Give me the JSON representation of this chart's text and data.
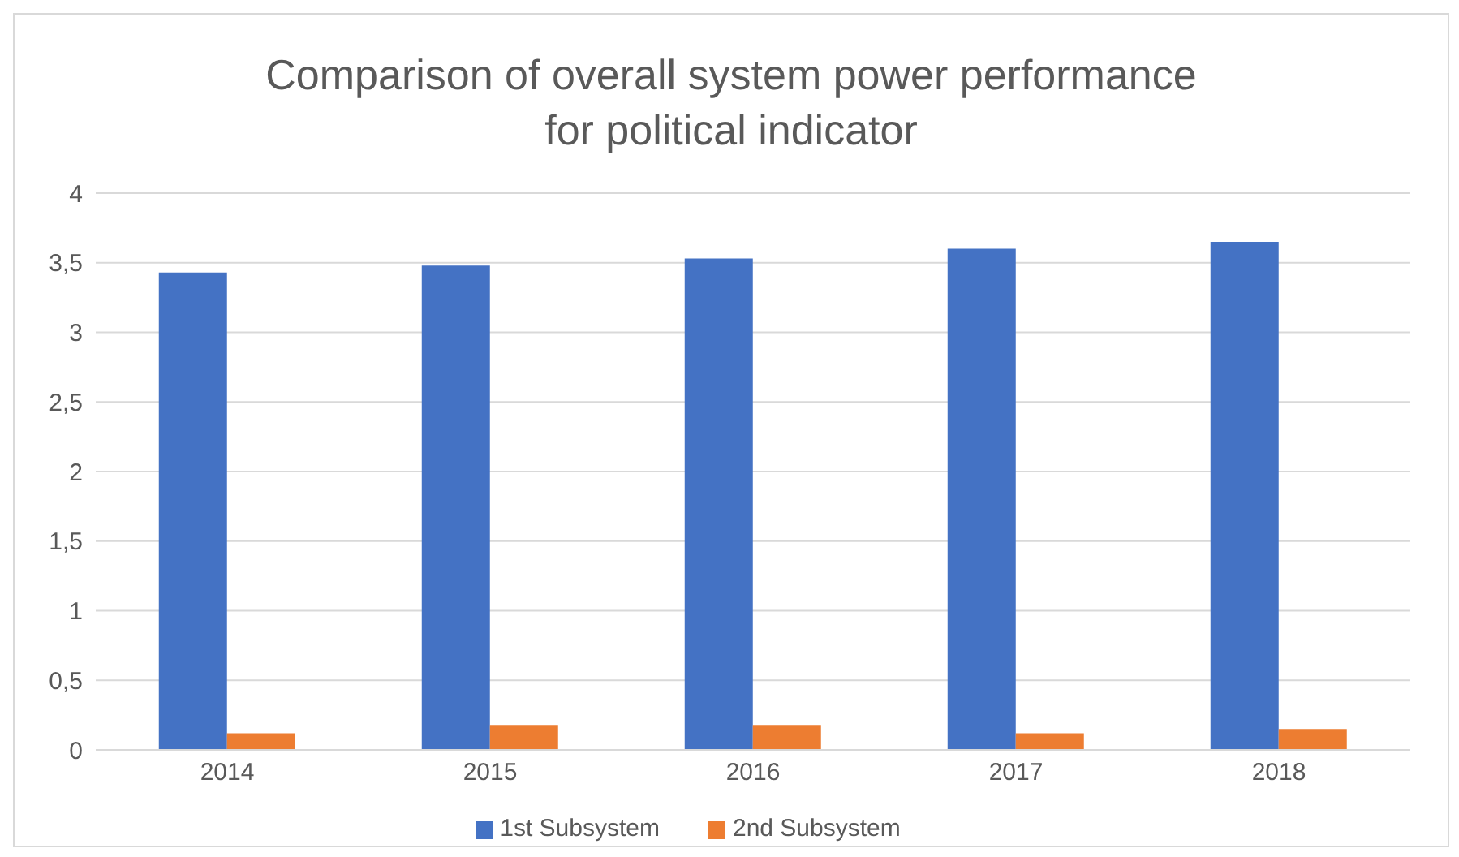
{
  "chart_data": {
    "type": "bar",
    "title": "Comparison of overall system power performance for political indicator",
    "categories": [
      "2014",
      "2015",
      "2016",
      "2017",
      "2018"
    ],
    "series": [
      {
        "name": "1st Subsystem",
        "color": "#4472c4",
        "values": [
          3.43,
          3.48,
          3.53,
          3.6,
          3.65
        ]
      },
      {
        "name": "2nd Subsystem",
        "color": "#ed7d31",
        "values": [
          0.12,
          0.18,
          0.18,
          0.12,
          0.15
        ]
      }
    ],
    "ylim": [
      0,
      4
    ],
    "yticks": [
      0,
      {
        "value": 0.5,
        "label": "0,5"
      },
      1,
      {
        "value": 1.5,
        "label": "1,5"
      },
      2,
      {
        "value": 2.5,
        "label": "2,5"
      },
      3,
      {
        "value": 3.5,
        "label": "3,5"
      },
      4
    ],
    "grid": "y",
    "legend": "bottom"
  }
}
